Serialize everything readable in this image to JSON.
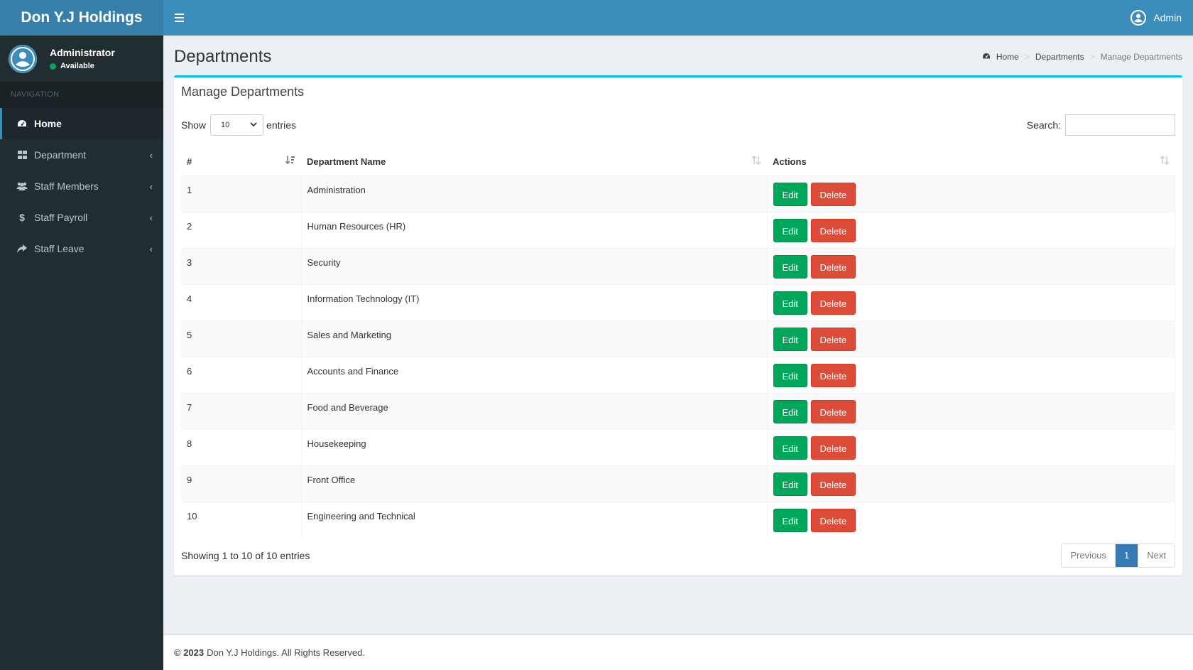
{
  "brand": "Don Y.J Holdings",
  "user": {
    "name": "Administrator",
    "status": "Available"
  },
  "sidebar": {
    "header": "NAVIGATION",
    "items": [
      {
        "label": "Home",
        "icon": "dashboard-icon"
      },
      {
        "label": "Department",
        "icon": "grid-icon"
      },
      {
        "label": "Staff Members",
        "icon": "users-icon"
      },
      {
        "label": "Staff Payroll",
        "icon": "dollar-icon"
      },
      {
        "label": "Staff Leave",
        "icon": "share-icon"
      }
    ]
  },
  "topbar": {
    "user_label": "Admin"
  },
  "page": {
    "title": "Departments",
    "breadcrumb": [
      "Home",
      "Departments",
      "Manage Departments"
    ]
  },
  "box": {
    "title": "Manage Departments",
    "show_label": "Show",
    "entries_label": "entries",
    "page_length": "10",
    "search_label": "Search:",
    "search_value": ""
  },
  "table": {
    "headers": [
      "#",
      "Department Name",
      "Actions"
    ],
    "edit_label": "Edit",
    "delete_label": "Delete",
    "rows": [
      {
        "id": "1",
        "name": "Administration"
      },
      {
        "id": "2",
        "name": "Human Resources (HR)"
      },
      {
        "id": "3",
        "name": "Security"
      },
      {
        "id": "4",
        "name": "Information Technology (IT)"
      },
      {
        "id": "5",
        "name": "Sales and Marketing"
      },
      {
        "id": "6",
        "name": "Accounts and Finance"
      },
      {
        "id": "7",
        "name": "Food and Beverage"
      },
      {
        "id": "8",
        "name": "Housekeeping"
      },
      {
        "id": "9",
        "name": "Front Office"
      },
      {
        "id": "10",
        "name": "Engineering and Technical"
      }
    ]
  },
  "pagination": {
    "info": "Showing 1 to 10 of 10 entries",
    "previous": "Previous",
    "current": "1",
    "next": "Next"
  },
  "footer": {
    "copyright": "© 2023",
    "text": "Don Y.J Holdings. All Rights Reserved."
  },
  "colors": {
    "primary": "#3c8dbc",
    "sidebar": "#222d32",
    "success": "#00a65a",
    "danger": "#dd4b39",
    "box_accent": "#00c0ef"
  }
}
